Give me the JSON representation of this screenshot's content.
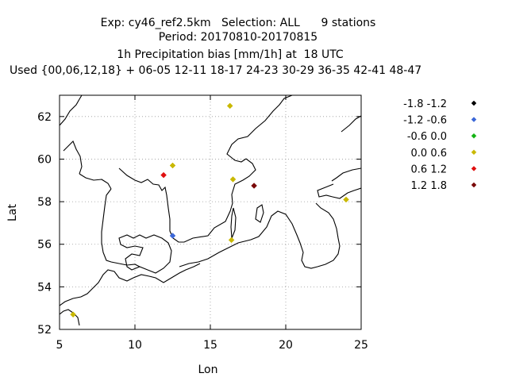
{
  "chart_data": {
    "type": "scatter",
    "title_lines": [
      "Exp: cy46_ref2.5km   Selection: ALL      9 stations",
      "Period: 20170810-20170815",
      "1h Precipitation bias [mm/1h] at  18 UTC",
      "Used {00,06,12,18} + 06-05 12-11 18-17 24-23 30-29 36-35 42-41 48-47"
    ],
    "xlabel": "Lon",
    "ylabel": "Lat",
    "xlim": [
      5,
      25
    ],
    "ylim": [
      52,
      63
    ],
    "xticks": [
      5,
      10,
      15,
      20,
      25
    ],
    "yticks": [
      52,
      54,
      56,
      58,
      60,
      62
    ],
    "grid": true,
    "legend_position": "right",
    "legend": [
      {
        "label": "-1.8 -1.2",
        "color": "#000000"
      },
      {
        "label": "-1.2 -0.6",
        "color": "#3c68d8"
      },
      {
        "label": "-0.6 0.0",
        "color": "#13b313"
      },
      {
        "label": "0.0 0.6",
        "color": "#c9b800"
      },
      {
        "label": "0.6 1.2",
        "color": "#e01010"
      },
      {
        "label": "1.2 1.8",
        "color": "#7a0a0a"
      }
    ],
    "points": [
      {
        "lon": 16.3,
        "lat": 62.5,
        "color": "#c9b800"
      },
      {
        "lon": 12.5,
        "lat": 59.7,
        "color": "#c9b800"
      },
      {
        "lon": 11.9,
        "lat": 59.25,
        "color": "#e01010"
      },
      {
        "lon": 16.5,
        "lat": 59.05,
        "color": "#c9b800"
      },
      {
        "lon": 17.9,
        "lat": 58.75,
        "color": "#7a0a0a"
      },
      {
        "lon": 24.0,
        "lat": 58.1,
        "color": "#c9b800"
      },
      {
        "lon": 12.5,
        "lat": 56.4,
        "color": "#3c68d8"
      },
      {
        "lon": 16.4,
        "lat": 56.2,
        "color": "#c9b800"
      },
      {
        "lon": 5.9,
        "lat": 52.7,
        "color": "#c9b800"
      }
    ]
  }
}
